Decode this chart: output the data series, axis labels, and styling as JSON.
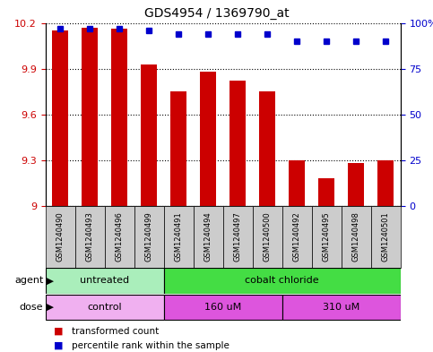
{
  "title": "GDS4954 / 1369790_at",
  "samples": [
    "GSM1240490",
    "GSM1240493",
    "GSM1240496",
    "GSM1240499",
    "GSM1240491",
    "GSM1240494",
    "GSM1240497",
    "GSM1240500",
    "GSM1240492",
    "GSM1240495",
    "GSM1240498",
    "GSM1240501"
  ],
  "bar_values": [
    10.15,
    10.17,
    10.16,
    9.93,
    9.75,
    9.88,
    9.82,
    9.75,
    9.3,
    9.18,
    9.28,
    9.3
  ],
  "dot_values": [
    97,
    97,
    97,
    96,
    94,
    94,
    94,
    94,
    90,
    90,
    90,
    90
  ],
  "bar_bottom": 9.0,
  "ylim_left": [
    9.0,
    10.2
  ],
  "ylim_right": [
    0,
    100
  ],
  "yticks_left": [
    9.0,
    9.3,
    9.6,
    9.9,
    10.2
  ],
  "yticks_right": [
    0,
    25,
    50,
    75,
    100
  ],
  "ytick_labels_left": [
    "9",
    "9.3",
    "9.6",
    "9.9",
    "10.2"
  ],
  "ytick_labels_right": [
    "0",
    "25",
    "50",
    "75",
    "100%"
  ],
  "bar_color": "#cc0000",
  "dot_color": "#0000cc",
  "bar_width": 0.55,
  "agent_groups": [
    {
      "label": "untreated",
      "start": 0,
      "end": 4,
      "color": "#aaeebb"
    },
    {
      "label": "cobalt chloride",
      "start": 4,
      "end": 12,
      "color": "#44dd44"
    }
  ],
  "dose_groups": [
    {
      "label": "control",
      "start": 0,
      "end": 4,
      "color": "#f0b0f0"
    },
    {
      "label": "160 uM",
      "start": 4,
      "end": 8,
      "color": "#dd55dd"
    },
    {
      "label": "310 uM",
      "start": 8,
      "end": 12,
      "color": "#dd55dd"
    }
  ],
  "agent_label": "agent",
  "dose_label": "dose",
  "legend_bar_label": "transformed count",
  "legend_dot_label": "percentile rank within the sample",
  "grid_color": "#000000",
  "sample_bg_color": "#cccccc",
  "title_fontsize": 10,
  "tick_fontsize": 8,
  "sample_fontsize": 6,
  "row_fontsize": 8
}
